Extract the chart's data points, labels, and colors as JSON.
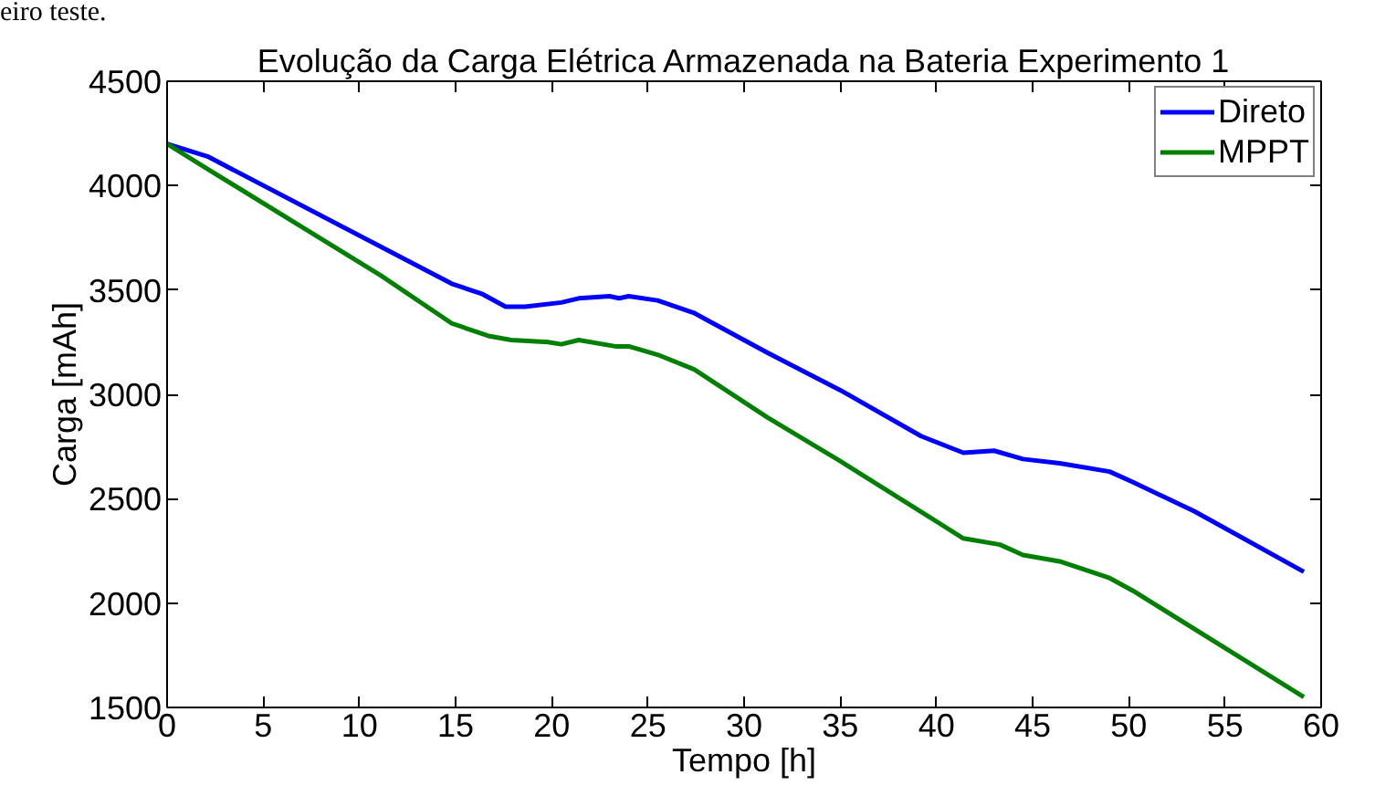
{
  "chart_data": {
    "type": "line",
    "title": "Evolução da Carga Elétrica Armazenada na Bateria Experimento 1",
    "xlabel": "Tempo [h]",
    "ylabel": "Carga [mAh]",
    "annotations": [
      "eiro teste."
    ],
    "xlim": [
      0,
      60
    ],
    "ylim": [
      1500,
      4500
    ],
    "xticks": [
      0,
      5,
      10,
      15,
      20,
      25,
      30,
      35,
      40,
      45,
      50,
      55,
      60
    ],
    "yticks": [
      1500,
      2000,
      2500,
      3000,
      3500,
      4000,
      4500
    ],
    "grid": false,
    "legend": "top right",
    "marker": "none",
    "line_style": "solid",
    "series": [
      {
        "name": "Direto",
        "color": "#0000ff",
        "x": [
          0,
          2.1,
          14.8,
          16.4,
          17.6,
          18.6,
          20.5,
          21.4,
          23.0,
          23.5,
          24.0,
          25.5,
          27.4,
          31.2,
          35.0,
          39.2,
          41.4,
          43.0,
          44.5,
          46.4,
          49.0,
          50.2,
          53.4,
          59.1
        ],
        "values": [
          4200,
          4140,
          3530,
          3480,
          3420,
          3420,
          3440,
          3460,
          3470,
          3460,
          3470,
          3450,
          3390,
          3200,
          3020,
          2800,
          2720,
          2730,
          2690,
          2670,
          2630,
          2580,
          2440,
          2150
        ]
      },
      {
        "name": "MPPT",
        "color": "#008000",
        "x": [
          0,
          2.1,
          11.1,
          14.8,
          16.7,
          17.9,
          19.8,
          20.5,
          21.4,
          23.3,
          24.0,
          25.5,
          27.4,
          31.2,
          35.0,
          39.5,
          41.4,
          43.3,
          44.5,
          46.4,
          49.0,
          50.2,
          59.1
        ],
        "values": [
          4200,
          4080,
          3570,
          3340,
          3280,
          3260,
          3250,
          3240,
          3260,
          3230,
          3230,
          3190,
          3120,
          2890,
          2680,
          2420,
          2310,
          2280,
          2230,
          2200,
          2120,
          2060,
          1550
        ]
      }
    ]
  }
}
